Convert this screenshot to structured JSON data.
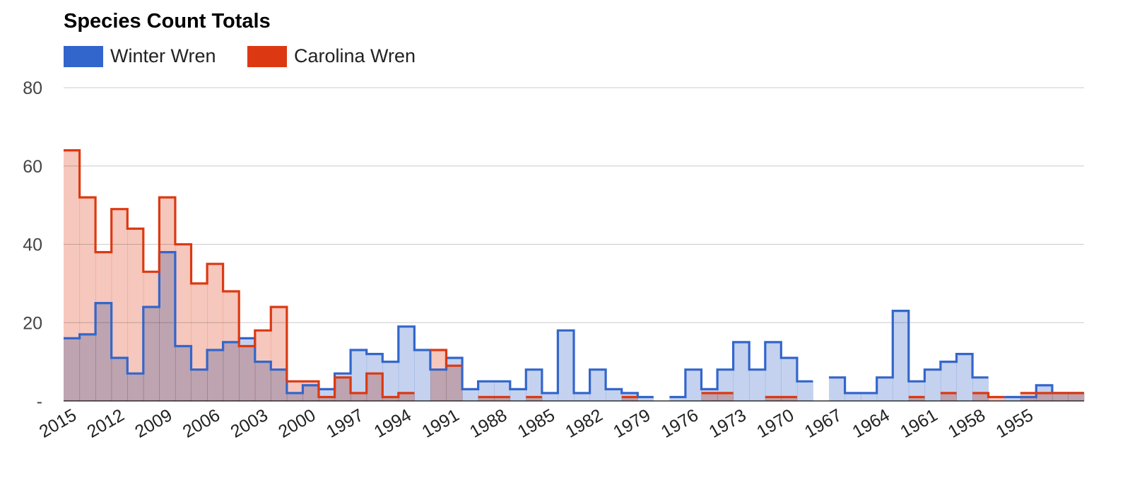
{
  "chart_data": {
    "type": "area",
    "stepped": true,
    "title": "Species Count Totals",
    "xlabel": "",
    "ylabel": "",
    "ylim": [
      0,
      80
    ],
    "yticks": [
      0,
      20,
      40,
      60,
      80
    ],
    "ytick_labels": [
      "-",
      "20",
      "40",
      "60",
      "80"
    ],
    "grid": true,
    "legend_position": "top-left",
    "x": [
      2015,
      2014,
      2013,
      2012,
      2011,
      2010,
      2009,
      2008,
      2007,
      2006,
      2005,
      2004,
      2003,
      2002,
      2001,
      2000,
      1999,
      1998,
      1997,
      1996,
      1995,
      1994,
      1993,
      1992,
      1991,
      1990,
      1989,
      1988,
      1987,
      1986,
      1985,
      1984,
      1983,
      1982,
      1981,
      1980,
      1979,
      1978,
      1977,
      1976,
      1975,
      1974,
      1973,
      1972,
      1971,
      1970,
      1969,
      1968,
      1967,
      1966,
      1965,
      1964,
      1963,
      1962,
      1961,
      1960,
      1959,
      1958,
      1957,
      1956,
      1955,
      1954,
      1953,
      1952
    ],
    "xtick_labels": [
      "2015",
      "2012",
      "2009",
      "2006",
      "2003",
      "2000",
      "1997",
      "1994",
      "1991",
      "1988",
      "1985",
      "1982",
      "1979",
      "1976",
      "1973",
      "1970",
      "1967",
      "1964",
      "1961",
      "1958",
      "1955"
    ],
    "series": [
      {
        "name": "Winter Wren",
        "color": "#3366cc",
        "fill": "#c1d0ee",
        "values": [
          16,
          17,
          25,
          11,
          7,
          24,
          38,
          14,
          8,
          13,
          15,
          16,
          10,
          8,
          2,
          4,
          3,
          7,
          13,
          12,
          10,
          19,
          13,
          8,
          11,
          3,
          5,
          5,
          3,
          8,
          2,
          18,
          2,
          8,
          3,
          2,
          1,
          null,
          1,
          8,
          3,
          8,
          15,
          8,
          15,
          11,
          5,
          null,
          6,
          2,
          2,
          6,
          23,
          5,
          8,
          10,
          12,
          6,
          null,
          1,
          1,
          4,
          2,
          2
        ]
      },
      {
        "name": "Carolina Wren",
        "color": "#dc3912",
        "fill": "#f5c4b8",
        "values": [
          64,
          52,
          38,
          49,
          44,
          33,
          52,
          40,
          30,
          35,
          28,
          14,
          18,
          24,
          5,
          5,
          1,
          6,
          2,
          7,
          1,
          2,
          null,
          13,
          9,
          null,
          1,
          1,
          null,
          1,
          null,
          null,
          null,
          null,
          null,
          1,
          null,
          null,
          null,
          null,
          2,
          2,
          null,
          null,
          1,
          1,
          null,
          null,
          null,
          null,
          null,
          null,
          null,
          1,
          null,
          2,
          null,
          2,
          1,
          null,
          2,
          2,
          2,
          2
        ]
      }
    ]
  }
}
